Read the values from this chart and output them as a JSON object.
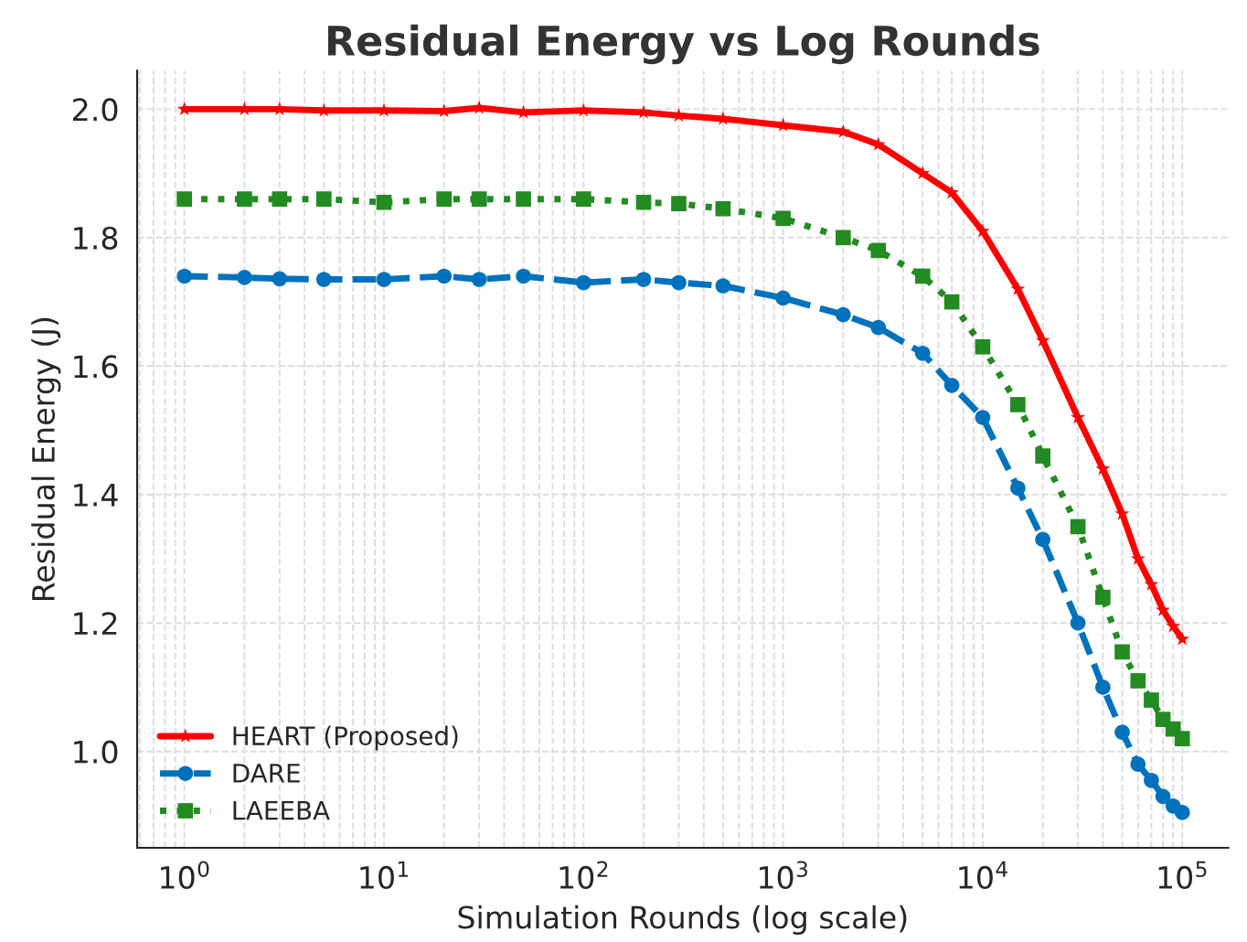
{
  "chart_data": {
    "type": "line",
    "title": "Residual Energy vs Log Rounds",
    "xlabel": "Simulation Rounds (log scale)",
    "ylabel": "Residual Energy (J)",
    "x": [
      1,
      2,
      3,
      5,
      10,
      20,
      30,
      50,
      100,
      200,
      300,
      500,
      1000,
      2000,
      3000,
      5000,
      7000,
      10000,
      15000,
      20000,
      30000,
      40000,
      50000,
      60000,
      70000,
      80000,
      90000,
      100000
    ],
    "series": [
      {
        "name": "HEART (Proposed)",
        "color": "#ff0000",
        "marker": "star",
        "line_style": "solid",
        "values": [
          2.0,
          2.0,
          2.0,
          1.998,
          1.998,
          1.997,
          2.002,
          1.995,
          1.998,
          1.995,
          1.99,
          1.985,
          1.975,
          1.965,
          1.945,
          1.9,
          1.87,
          1.81,
          1.72,
          1.64,
          1.52,
          1.44,
          1.37,
          1.3,
          1.26,
          1.22,
          1.195,
          1.175
        ]
      },
      {
        "name": "DARE",
        "color": "#0072bd",
        "marker": "circle",
        "line_style": "dashed",
        "values": [
          1.74,
          1.738,
          1.736,
          1.735,
          1.735,
          1.74,
          1.735,
          1.74,
          1.73,
          1.735,
          1.73,
          1.725,
          1.706,
          1.68,
          1.66,
          1.62,
          1.57,
          1.52,
          1.41,
          1.33,
          1.2,
          1.1,
          1.03,
          0.98,
          0.955,
          0.93,
          0.915,
          0.905
        ]
      },
      {
        "name": "LAEEBA",
        "color": "#228b22",
        "marker": "square",
        "line_style": "dotted",
        "values": [
          1.86,
          1.86,
          1.86,
          1.86,
          1.855,
          1.86,
          1.86,
          1.86,
          1.86,
          1.855,
          1.853,
          1.845,
          1.83,
          1.8,
          1.78,
          1.74,
          1.7,
          1.63,
          1.54,
          1.46,
          1.35,
          1.24,
          1.155,
          1.11,
          1.08,
          1.05,
          1.035,
          1.02
        ]
      }
    ],
    "log": "x",
    "xlim": [
      0.58,
      170000
    ],
    "xticks": [
      {
        "value": 1,
        "label": "10$^{0}$"
      },
      {
        "value": 10,
        "label": "10$^{1}$"
      },
      {
        "value": 100,
        "label": "10$^{2}$"
      },
      {
        "value": 1000,
        "label": "10$^{3}$"
      },
      {
        "value": 10000,
        "label": "10$^{4}$"
      },
      {
        "value": 100000,
        "label": "10$^{5}$"
      }
    ],
    "ylim": [
      0.85,
      2.06
    ],
    "yticks": [
      {
        "value": 1,
        "label": "1.0"
      },
      1.2,
      1.4,
      1.6,
      1.8,
      {
        "value": 2,
        "label": "2.0"
      }
    ],
    "grid": true,
    "legend": "bottom left"
  }
}
